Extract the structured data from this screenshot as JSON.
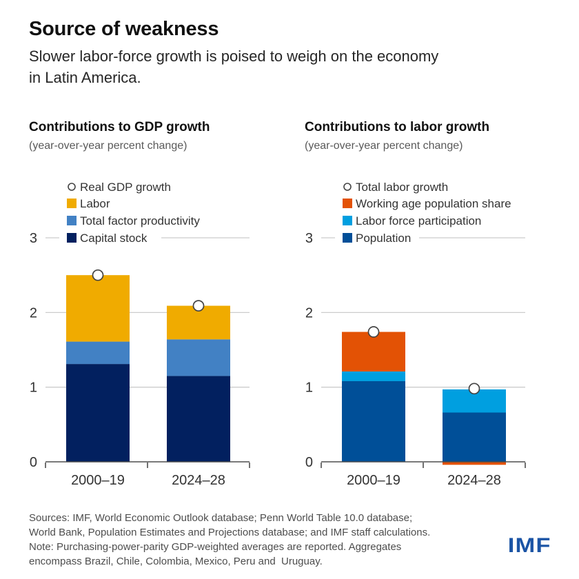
{
  "header": {
    "title": "Source of weakness",
    "subtitle_lines": [
      "Slower labor-force growth is poised to weigh on the economy",
      "in Latin America."
    ]
  },
  "chart_data": [
    {
      "type": "bar",
      "stacked": true,
      "title": "Contributions to GDP growth",
      "subtitle": "(year-over-year percent change)",
      "categories": [
        "2000–19",
        "2024–28"
      ],
      "series": [
        {
          "name": "Capital stock",
          "color": "#02205F",
          "values": [
            1.31,
            1.15
          ]
        },
        {
          "name": "Total factor productivity",
          "color": "#4281C4",
          "values": [
            0.3,
            0.49
          ]
        },
        {
          "name": "Labor",
          "color": "#F0AB00",
          "values": [
            0.89,
            0.45
          ]
        }
      ],
      "marker": {
        "name": "Real GDP growth",
        "values": [
          2.5,
          2.09
        ]
      },
      "ylim": [
        0,
        3
      ],
      "yticks": [
        0,
        1,
        2,
        3
      ],
      "grid": "horizontal",
      "legend_position": "top-left"
    },
    {
      "type": "bar",
      "stacked": true,
      "title": "Contributions to labor growth",
      "subtitle": "(year-over-year percent change)",
      "categories": [
        "2000–19",
        "2024–28"
      ],
      "series": [
        {
          "name": "Population",
          "color": "#004F98",
          "values": [
            1.08,
            0.66
          ]
        },
        {
          "name": "Labor force participation",
          "color": "#009FE0",
          "values": [
            0.13,
            0.31
          ]
        },
        {
          "name": "Working age population share",
          "color": "#E35205",
          "values": [
            0.53,
            -0.04
          ]
        }
      ],
      "marker": {
        "name": "Total labor growth",
        "values": [
          1.74,
          0.98
        ]
      },
      "ylim": [
        0,
        3
      ],
      "yticks": [
        0,
        1,
        2,
        3
      ],
      "grid": "horizontal",
      "legend_position": "top-left"
    }
  ],
  "footer": {
    "lines": [
      "Sources: IMF, World Economic Outlook database; Penn World Table 10.0 database;",
      "World Bank, Population Estimates and Projections database; and IMF staff calculations.",
      "Note: Purchasing-power-parity GDP-weighted averages are reported. Aggregates",
      "encompass Brazil, Chile, Colombia, Mexico, Peru and  Uruguay."
    ],
    "logo": "IMF"
  },
  "colors": {
    "amber": "#F0AB00",
    "medium_blue": "#4281C4",
    "navy": "#02205F",
    "orange_red": "#E35205",
    "light_blue": "#009FE0",
    "population_blue": "#004F98",
    "imf_logo_blue": "#1B54A5",
    "gridline": "#CCCCCC",
    "axis": "#4D4D4D",
    "text": "#333333"
  }
}
